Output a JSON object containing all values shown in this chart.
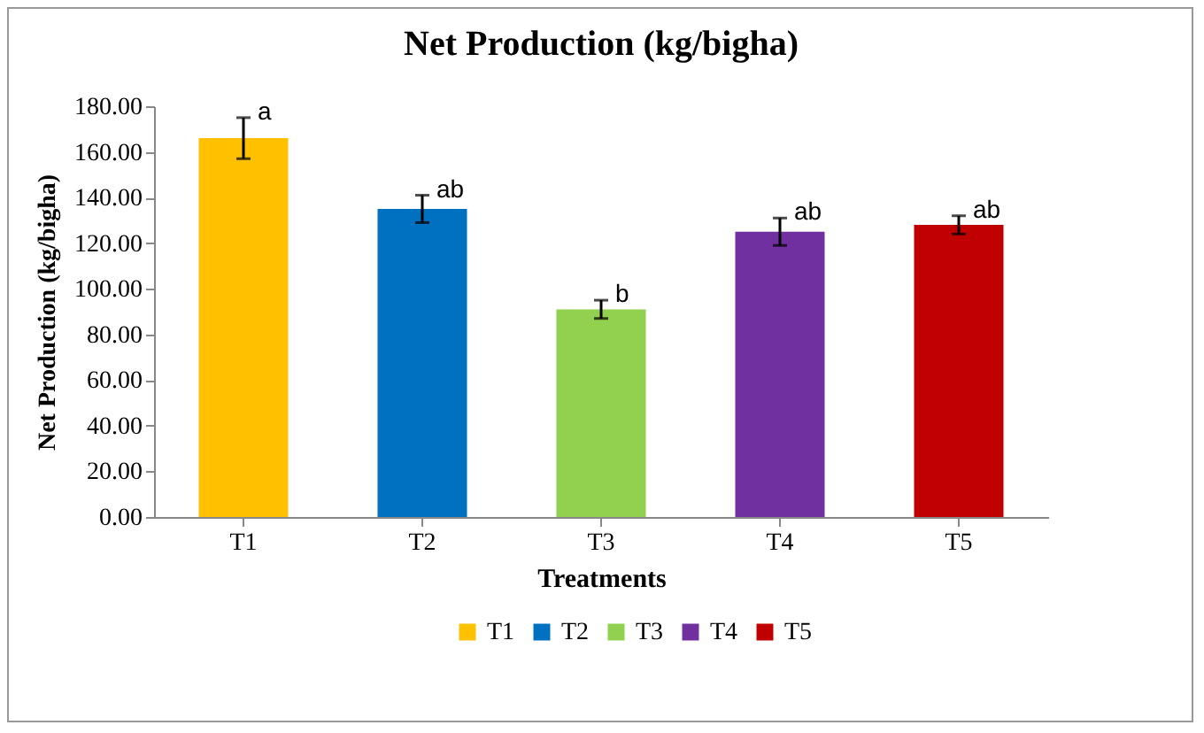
{
  "chart_data": {
    "type": "bar",
    "title": "Net Production (kg/bigha)",
    "xlabel": "Treatments",
    "ylabel": "Net Production (kg/bigha)",
    "categories": [
      "T1",
      "T2",
      "T3",
      "T4",
      "T5"
    ],
    "series": [
      {
        "name": "T1",
        "color": "#ffc000",
        "values": [
          166,
          null,
          null,
          null,
          null
        ],
        "errors": [
          9,
          null,
          null,
          null,
          null
        ]
      },
      {
        "name": "T2",
        "color": "#0070c0",
        "values": [
          null,
          135,
          null,
          null,
          null
        ],
        "errors": [
          null,
          6,
          null,
          null,
          null
        ]
      },
      {
        "name": "T3",
        "color": "#92d050",
        "values": [
          null,
          null,
          91,
          null,
          null
        ],
        "errors": [
          null,
          null,
          4,
          null,
          null
        ]
      },
      {
        "name": "T4",
        "color": "#7030a0",
        "values": [
          null,
          null,
          null,
          125,
          null
        ],
        "errors": [
          null,
          null,
          null,
          6,
          null
        ]
      },
      {
        "name": "T5",
        "color": "#c00000",
        "values": [
          null,
          null,
          null,
          null,
          128
        ],
        "errors": [
          null,
          null,
          null,
          null,
          4
        ]
      }
    ],
    "ylim": [
      0,
      180
    ],
    "yticks": [
      {
        "value": 0,
        "label": "0.00"
      },
      {
        "value": 20,
        "label": "20.00"
      },
      {
        "value": 40,
        "label": "40.00"
      },
      {
        "value": 60,
        "label": "60.00"
      },
      {
        "value": 80,
        "label": "80.00"
      },
      {
        "value": 100,
        "label": "100.00"
      },
      {
        "value": 120,
        "label": "120.00"
      },
      {
        "value": 140,
        "label": "140.00"
      },
      {
        "value": 160,
        "label": "160.00"
      },
      {
        "value": 180,
        "label": "180.00"
      }
    ],
    "annotations": [
      {
        "text": "a",
        "x": "T1",
        "y": 175
      },
      {
        "text": "ab",
        "x": "T2",
        "y": 141
      },
      {
        "text": "b",
        "x": "T3",
        "y": 95
      },
      {
        "text": "ab",
        "x": "T4",
        "y": 131
      },
      {
        "text": "ab",
        "x": "T5",
        "y": 132
      }
    ],
    "grid": false,
    "legend": "bottom"
  }
}
